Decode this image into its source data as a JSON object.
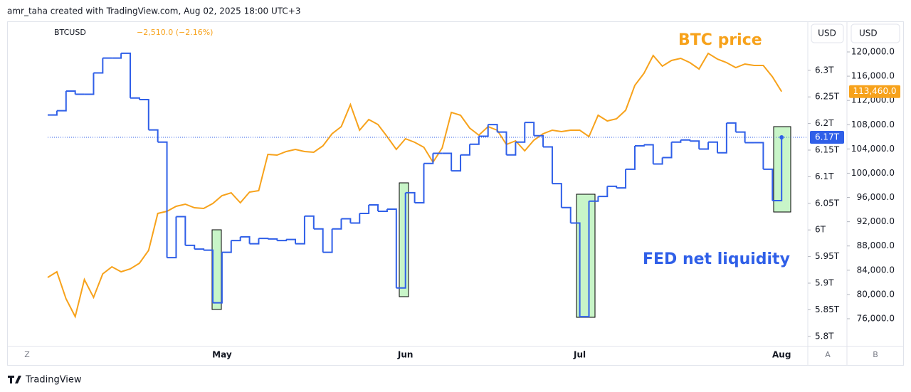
{
  "header": {
    "attribution": "amr_taha created with TradingView.com, Aug 02, 2025 18:00 UTC+3",
    "change": "−2,510.0 (−2.16%)"
  },
  "chart_data": {
    "type": "line",
    "categories": [
      null,
      null,
      null,
      null,
      null,
      null,
      null,
      null,
      null,
      null,
      null,
      null,
      null,
      null,
      null,
      null,
      null,
      null,
      null,
      "May",
      null,
      null,
      null,
      null,
      null,
      null,
      null,
      null,
      null,
      null,
      null,
      null,
      null,
      null,
      null,
      null,
      null,
      null,
      null,
      "Jun",
      null,
      null,
      null,
      null,
      null,
      null,
      null,
      null,
      null,
      null,
      null,
      null,
      null,
      null,
      null,
      null,
      null,
      null,
      "Jul",
      null,
      null,
      null,
      null,
      null,
      null,
      null,
      null,
      null,
      null,
      null,
      null,
      null,
      null,
      null,
      null,
      null,
      null,
      null,
      null,
      null,
      "Aug"
    ],
    "series": [
      {
        "annotation": "FED net liquidity",
        "color": "#2f5fe8",
        "axis": "y",
        "step": true,
        "last_label": "6.17T",
        "values": [
          6.216,
          6.224,
          6.261,
          6.255,
          6.255,
          6.295,
          6.323,
          6.323,
          6.332,
          6.248,
          6.245,
          6.188,
          6.165,
          5.948,
          6.025,
          5.971,
          5.964,
          5.962,
          5.863,
          5.958,
          5.98,
          5.987,
          5.974,
          5.984,
          5.983,
          5.98,
          5.982,
          5.974,
          6.026,
          6.002,
          5.958,
          6.002,
          6.021,
          6.013,
          6.031,
          6.047,
          6.035,
          6.039,
          5.891,
          6.07,
          6.051,
          6.125,
          6.144,
          6.144,
          6.111,
          6.141,
          6.161,
          6.176,
          6.198,
          6.184,
          6.141,
          6.165,
          6.202,
          6.177,
          6.156,
          6.087,
          6.042,
          6.013,
          5.837,
          6.054,
          6.063,
          6.082,
          6.079,
          6.114,
          6.158,
          6.16,
          6.124,
          6.136,
          6.165,
          6.169,
          6.167,
          6.152,
          6.165,
          6.145,
          6.201,
          6.184,
          6.164,
          6.164,
          6.114,
          6.055,
          6.174
        ]
      },
      {
        "name": "BTCUSD",
        "annotation": "BTC price",
        "color": "#f7a21b",
        "axis": "y2",
        "last_label": "113,460.0",
        "values": [
          82807,
          83745,
          79285,
          76352,
          82453,
          79520,
          83392,
          84565,
          83745,
          84213,
          85152,
          87264,
          93365,
          93717,
          94539,
          94891,
          94304,
          94187,
          95008,
          96299,
          96768,
          95125,
          96885,
          97120,
          103104,
          102987,
          103573,
          103925,
          103573,
          103456,
          104512,
          106507,
          107680,
          111318,
          107093,
          108853,
          108032,
          106037,
          103925,
          105685,
          105099,
          104277,
          101813,
          104160,
          110027,
          109557,
          107445,
          106272,
          107680,
          107093,
          104747,
          105333,
          103691,
          105451,
          106507,
          107093,
          106859,
          107093,
          107093,
          106037,
          109557,
          108619,
          108971,
          110379,
          114485,
          116480,
          119413,
          117653,
          118592,
          118944,
          118240,
          117184,
          119765,
          118827,
          118240,
          117419,
          118005,
          117771,
          117771,
          115893,
          113460
        ]
      }
    ],
    "y_unit": "USD",
    "y2_unit": "USD",
    "ylim": [
      5.781,
      6.392
    ],
    "yticks": [
      {
        "value": 5.8,
        "label": "5.8T"
      },
      {
        "value": 5.85,
        "label": "5.85T"
      },
      {
        "value": 5.9,
        "label": "5.9T"
      },
      {
        "value": 5.95,
        "label": "5.95T"
      },
      {
        "value": 6,
        "label": "6T"
      },
      {
        "value": 6.05,
        "label": "6.05T"
      },
      {
        "value": 6.1,
        "label": "6.1T"
      },
      {
        "value": 6.15,
        "label": "6.15T"
      },
      {
        "value": 6.2,
        "label": "6.2T"
      },
      {
        "value": 6.25,
        "label": "6.25T"
      },
      {
        "value": 6.3,
        "label": "6.3T"
      }
    ],
    "y2lim": [
      71425,
      125045
    ],
    "y2ticks": [
      {
        "value": 76000,
        "label": "76,000.0"
      },
      {
        "value": 80000,
        "label": "80,000.0"
      },
      {
        "value": 84000,
        "label": "84,000.0"
      },
      {
        "value": 88000,
        "label": "88,000.0"
      },
      {
        "value": 92000,
        "label": "92,000.0"
      },
      {
        "value": 96000,
        "label": "96,000.0"
      },
      {
        "value": 100000,
        "label": "100,000.0"
      },
      {
        "value": 104000,
        "label": "104,000.0"
      },
      {
        "value": 108000,
        "label": "108,000.0"
      },
      {
        "value": 112000,
        "label": "112,000.0"
      },
      {
        "value": 116000,
        "label": "116,000.0"
      },
      {
        "value": 120000,
        "label": "120,000.0"
      }
    ],
    "grid": false
  },
  "toolbar": {
    "timezone_button": "Z",
    "auto_button": "A",
    "b_button": "B"
  },
  "footer": {
    "brand": "TradingView"
  }
}
